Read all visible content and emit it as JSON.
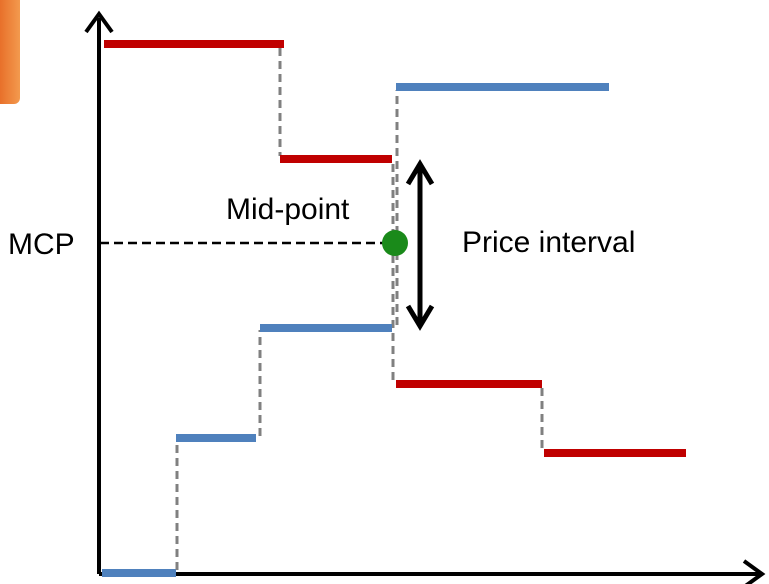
{
  "labels": {
    "mcp": "MCP",
    "mid_point": "Mid-point",
    "price_interval": "Price interval"
  },
  "colors": {
    "demand": "#c00000",
    "supply": "#4f81bd",
    "mid_point": "#1a8a1a",
    "connector": "#808080",
    "axis": "#000000",
    "corner_tab": "#e8702a"
  },
  "icons": {
    "corner_tab": "orange-tab-icon",
    "mid_point": "green-dot-icon",
    "price_interval": "double-arrow-icon"
  }
}
